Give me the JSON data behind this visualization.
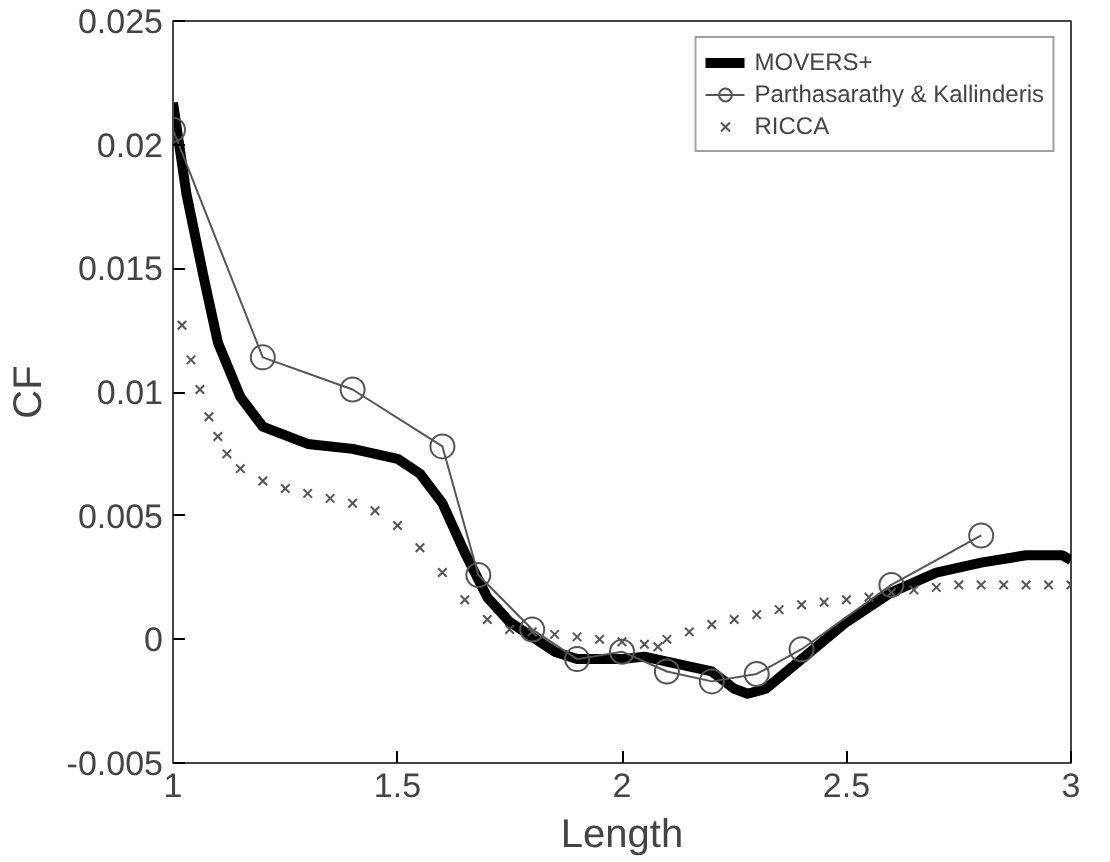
{
  "chart_data": {
    "type": "line",
    "xlabel": "Length",
    "ylabel": "CF",
    "xlim": [
      1,
      3
    ],
    "ylim": [
      -0.005,
      0.025
    ],
    "xticks": [
      1,
      1.5,
      2,
      2.5,
      3
    ],
    "yticks": [
      -0.005,
      0,
      0.005,
      0.01,
      0.015,
      0.02,
      0.025
    ],
    "grid": false,
    "legend": "top right",
    "series": [
      {
        "name": "MOVERS+",
        "color": "#000000",
        "marker": "none",
        "line_style": "solid",
        "x": [
          1.0,
          1.03,
          1.07,
          1.1,
          1.15,
          1.2,
          1.3,
          1.4,
          1.5,
          1.55,
          1.6,
          1.65,
          1.7,
          1.75,
          1.8,
          1.85,
          1.9,
          2.0,
          2.05,
          2.1,
          2.2,
          2.25,
          2.28,
          2.32,
          2.4,
          2.5,
          2.6,
          2.7,
          2.8,
          2.9,
          2.98,
          3.0
        ],
        "values": [
          0.0217,
          0.018,
          0.0145,
          0.012,
          0.0098,
          0.0086,
          0.0079,
          0.0077,
          0.0073,
          0.0067,
          0.0055,
          0.0035,
          0.0017,
          0.0007,
          0.0001,
          -0.0005,
          -0.0008,
          -0.0008,
          -0.0007,
          -0.0009,
          -0.0013,
          -0.002,
          -0.0022,
          -0.002,
          -0.0008,
          0.0007,
          0.0019,
          0.0027,
          0.0031,
          0.0034,
          0.0034,
          0.0032
        ]
      },
      {
        "name": "Parthasarathy & Kallinderis",
        "color": "#555555",
        "marker": "circle",
        "line_style": "solid",
        "x": [
          1.0,
          1.2,
          1.4,
          1.6,
          1.68,
          1.8,
          1.9,
          2.0,
          2.1,
          2.2,
          2.3,
          2.4,
          2.6,
          2.8
        ],
        "values": [
          0.0206,
          0.0114,
          0.0101,
          0.0078,
          0.0026,
          0.0004,
          -0.0008,
          -0.0005,
          -0.0013,
          -0.0017,
          -0.0014,
          -0.0004,
          0.0022,
          0.0042
        ]
      },
      {
        "name": "RICCA",
        "type": "scatter",
        "color": "#555555",
        "marker": "cross",
        "x": [
          1.02,
          1.04,
          1.06,
          1.08,
          1.1,
          1.12,
          1.15,
          1.2,
          1.25,
          1.3,
          1.35,
          1.4,
          1.45,
          1.5,
          1.55,
          1.6,
          1.65,
          1.7,
          1.75,
          1.8,
          1.85,
          1.9,
          1.95,
          2.0,
          2.05,
          2.08,
          2.1,
          2.15,
          2.2,
          2.25,
          2.3,
          2.35,
          2.4,
          2.45,
          2.5,
          2.55,
          2.6,
          2.65,
          2.7,
          2.75,
          2.8,
          2.85,
          2.9,
          2.95,
          3.0
        ],
        "values": [
          0.0127,
          0.0113,
          0.0101,
          0.009,
          0.0082,
          0.0075,
          0.0069,
          0.0064,
          0.0061,
          0.0059,
          0.0057,
          0.0055,
          0.0052,
          0.0046,
          0.0037,
          0.0027,
          0.0016,
          0.0008,
          0.0004,
          0.0003,
          0.0002,
          0.0001,
          0.0,
          -0.0001,
          -0.0002,
          -0.0003,
          0.0,
          0.0003,
          0.0006,
          0.0008,
          0.001,
          0.0012,
          0.0014,
          0.0015,
          0.0016,
          0.0017,
          0.0019,
          0.002,
          0.0021,
          0.0022,
          0.0022,
          0.0022,
          0.0022,
          0.0022,
          0.0022
        ]
      }
    ]
  }
}
